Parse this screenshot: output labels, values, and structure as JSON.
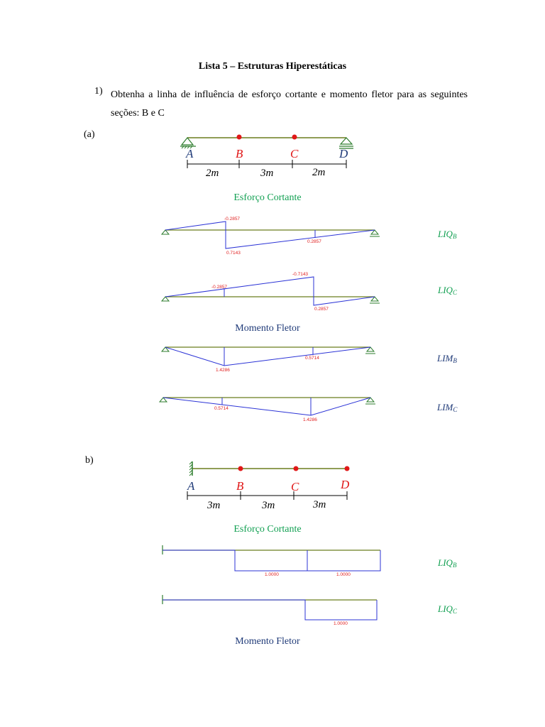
{
  "header": {
    "title": "Lista 5 – Estruturas Hiperestáticas"
  },
  "question1": {
    "number": "1)",
    "text": "Obtenha a linha de influência de esforço cortante e momento fletor para as seguintes seções: B e C"
  },
  "part_a": {
    "label": "(a)",
    "beam": {
      "points": [
        "A",
        "B",
        "C",
        "D"
      ],
      "spans": [
        "2m",
        "3m",
        "2m"
      ]
    },
    "shear_title": "Esforço Cortante",
    "moment_title": "Momento Fletor",
    "liq_b": {
      "label": "LIQ",
      "sub": "B",
      "values": [
        "-0.2857",
        "0.7143",
        "0.2857"
      ]
    },
    "liq_c": {
      "label": "LIQ",
      "sub": "C",
      "values": [
        "-0.2857",
        "-0.7143",
        "0.2857"
      ]
    },
    "lim_b": {
      "label": "LIM",
      "sub": "B",
      "values": [
        "1.4286",
        "0.5714"
      ]
    },
    "lim_c": {
      "label": "LIM",
      "sub": "C",
      "values": [
        "0.5714",
        "1.4286"
      ]
    }
  },
  "part_b": {
    "label": "b)",
    "beam": {
      "points": [
        "A",
        "B",
        "C",
        "D"
      ],
      "spans": [
        "3m",
        "3m",
        "3m"
      ]
    },
    "shear_title": "Esforço Cortante",
    "moment_title": "Momento Fletor",
    "liq_b": {
      "label": "LIQ",
      "sub": "B",
      "values": [
        "1.0000",
        "1.0000"
      ]
    },
    "liq_c": {
      "label": "LIQ",
      "sub": "C",
      "values": [
        "1.0000"
      ]
    }
  },
  "colors": {
    "beam": "#6b7d1e",
    "diagram": "#2b33d6",
    "node": "#e01818",
    "label_green": "#12a052",
    "label_blue": "#1f3a78",
    "value": "#e02020"
  }
}
